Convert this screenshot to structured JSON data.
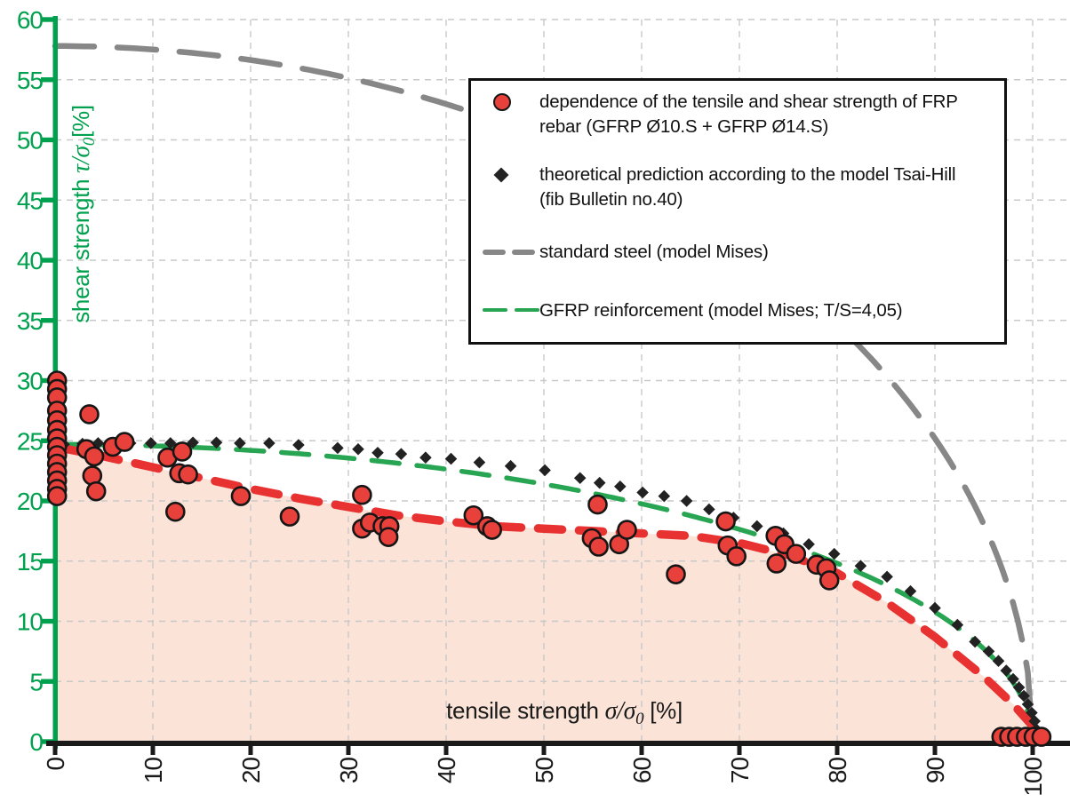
{
  "colors": {
    "axis_green": "#00a14e",
    "curve_green": "#27a552",
    "curve_gray": "#878787",
    "curve_red": "#e73231",
    "fill_pink": "#fbe3d8",
    "point_red_fill": "#e8403a",
    "point_outline": "#161616",
    "diamond_black": "#222222",
    "grid_gray": "#c9c9c9",
    "axis_black": "#1a1a1a"
  },
  "axes": {
    "x": {
      "label": {
        "prefix": "tensile strength ",
        "symbol": "σ/σ",
        "sub": "0",
        "suffix": " [%]"
      },
      "ticks": [
        0,
        10,
        20,
        30,
        40,
        50,
        60,
        70,
        80,
        90,
        100
      ]
    },
    "y": {
      "label": {
        "prefix": "shear strength ",
        "symbol": "τ/σ",
        "sub": "0",
        "suffix": "[%]"
      },
      "ticks": [
        0,
        5,
        10,
        15,
        20,
        25,
        30,
        35,
        40,
        45,
        50,
        55,
        60
      ]
    }
  },
  "legend": {
    "items": [
      {
        "marker": "red-circle",
        "line1": "dependence of the tensile and shear strength of FRP",
        "line2": "rebar (GFRP Ø10.S + GFRP Ø14.S)"
      },
      {
        "marker": "black-diamond",
        "line1": "theoretical prediction according to the model Tsai-Hill",
        "line2": "(fib Bulletin no.40)"
      },
      {
        "marker": "gray-dash",
        "line1": "standard steel (model Mises)",
        "line2": ""
      },
      {
        "marker": "green-dash",
        "line1": "GFRP reinforcement (model Mises; T/S=4,05)",
        "line2": ""
      }
    ]
  },
  "chart_data": {
    "type": "scatter",
    "xlabel": "tensile strength σ/σ0 [%]",
    "ylabel": "shear strength τ/σ0 [%]",
    "xlim": [
      0,
      103.8
    ],
    "ylim": [
      0,
      60
    ],
    "grid": {
      "x_step": 10,
      "y_step": 5,
      "style": "dashed"
    },
    "legend_position": "top-right-box",
    "series": [
      {
        "id": "experimental",
        "name": "dependence of the tensile and shear strength of FRP rebar (GFRP Ø10.S + GFRP Ø14.S)",
        "type": "scatter",
        "marker": "circle",
        "color": "#e8403a",
        "points": [
          [
            0.2,
            30.0
          ],
          [
            0.2,
            29.3
          ],
          [
            0.2,
            28.6
          ],
          [
            0.2,
            27.5
          ],
          [
            0.2,
            26.7
          ],
          [
            0.2,
            25.9
          ],
          [
            0.2,
            25.2
          ],
          [
            0.2,
            24.5
          ],
          [
            0.2,
            23.8
          ],
          [
            0.2,
            23.1
          ],
          [
            0.2,
            22.4
          ],
          [
            0.2,
            21.7
          ],
          [
            0.2,
            21.0
          ],
          [
            0.2,
            20.4
          ],
          [
            3.5,
            27.2
          ],
          [
            3.2,
            24.3
          ],
          [
            4.0,
            23.7
          ],
          [
            3.8,
            22.1
          ],
          [
            4.2,
            20.8
          ],
          [
            5.9,
            24.5
          ],
          [
            7.1,
            24.9
          ],
          [
            11.5,
            23.6
          ],
          [
            13.0,
            24.1
          ],
          [
            12.7,
            22.3
          ],
          [
            13.6,
            22.2
          ],
          [
            12.3,
            19.1
          ],
          [
            19.0,
            20.4
          ],
          [
            24.0,
            18.7
          ],
          [
            31.4,
            20.5
          ],
          [
            31.4,
            17.7
          ],
          [
            32.2,
            18.2
          ],
          [
            33.5,
            17.9
          ],
          [
            34.2,
            17.9
          ],
          [
            34.1,
            17.0
          ],
          [
            42.8,
            18.8
          ],
          [
            44.2,
            17.9
          ],
          [
            44.7,
            17.6
          ],
          [
            55.5,
            19.7
          ],
          [
            54.9,
            16.9
          ],
          [
            55.6,
            16.2
          ],
          [
            57.7,
            16.4
          ],
          [
            58.5,
            17.6
          ],
          [
            63.5,
            13.9
          ],
          [
            68.6,
            18.3
          ],
          [
            68.8,
            16.3
          ],
          [
            69.7,
            15.4
          ],
          [
            73.7,
            17.1
          ],
          [
            74.6,
            16.4
          ],
          [
            75.8,
            15.6
          ],
          [
            73.8,
            14.8
          ],
          [
            77.9,
            14.7
          ],
          [
            78.9,
            14.4
          ],
          [
            79.2,
            13.4
          ],
          [
            96.8,
            0.4
          ],
          [
            97.6,
            0.4
          ],
          [
            98.4,
            0.4
          ],
          [
            99.3,
            0.4
          ],
          [
            100.1,
            0.4
          ],
          [
            100.9,
            0.4
          ]
        ]
      },
      {
        "id": "tsai_hill",
        "name": "theoretical prediction according to the model Tsai-Hill (fib Bulletin no.40)",
        "type": "scatter",
        "marker": "diamond",
        "color": "#222222",
        "points": [
          [
            0.9,
            24.7
          ],
          [
            2.8,
            24.75
          ],
          [
            4.4,
            24.8
          ],
          [
            6.0,
            24.8
          ],
          [
            7.7,
            24.8
          ],
          [
            9.8,
            24.8
          ],
          [
            11.8,
            24.8
          ],
          [
            14.1,
            24.85
          ],
          [
            16.5,
            24.85
          ],
          [
            18.9,
            24.8
          ],
          [
            21.9,
            24.8
          ],
          [
            24.9,
            24.65
          ],
          [
            28.9,
            24.4
          ],
          [
            31.0,
            24.3
          ],
          [
            33.0,
            24.0
          ],
          [
            35.4,
            23.9
          ],
          [
            37.9,
            23.6
          ],
          [
            40.5,
            23.5
          ],
          [
            43.4,
            23.2
          ],
          [
            46.6,
            22.9
          ],
          [
            50.1,
            22.55
          ],
          [
            53.7,
            21.9
          ],
          [
            55.7,
            21.5
          ],
          [
            57.8,
            21.2
          ],
          [
            60.1,
            20.7
          ],
          [
            62.3,
            20.4
          ],
          [
            64.6,
            20.0
          ],
          [
            66.9,
            19.3
          ],
          [
            69.4,
            18.6
          ],
          [
            71.8,
            17.9
          ],
          [
            74.5,
            17.3
          ],
          [
            77.1,
            16.4
          ],
          [
            79.7,
            15.6
          ],
          [
            82.4,
            14.6
          ],
          [
            85.1,
            13.7
          ],
          [
            87.5,
            12.5
          ],
          [
            90.0,
            11.1
          ],
          [
            92.3,
            9.7
          ],
          [
            94.1,
            8.3
          ],
          [
            95.5,
            7.5
          ],
          [
            96.5,
            6.7
          ],
          [
            97.3,
            5.9
          ],
          [
            98.0,
            5.2
          ],
          [
            98.6,
            4.5
          ],
          [
            99.1,
            3.8
          ],
          [
            99.5,
            3.1
          ],
          [
            99.9,
            2.4
          ],
          [
            100.2,
            1.7
          ],
          [
            100.4,
            1.0
          ],
          [
            100.3,
            0.5
          ]
        ]
      },
      {
        "id": "steel_mises",
        "name": "standard steel (model Mises)",
        "type": "line",
        "style": "dashed",
        "color": "#878787",
        "model": "mises-ellipse",
        "tau0": 57.8,
        "sigma_u": 100
      },
      {
        "id": "gfrp_mises",
        "name": "GFRP reinforcement (model Mises; T/S=4,05)",
        "type": "line",
        "style": "dashed",
        "color": "#27a552",
        "model": "mises-ellipse",
        "tau0": 24.7,
        "sigma_u": 100
      },
      {
        "id": "experimental_trend",
        "type": "line",
        "style": "dashed",
        "color": "#e73231",
        "fill_below": "#fbe3d8",
        "points": [
          [
            0,
            24.5
          ],
          [
            5,
            23.7
          ],
          [
            10,
            22.8
          ],
          [
            15,
            21.9
          ],
          [
            20,
            21.0
          ],
          [
            25,
            20.2
          ],
          [
            30,
            19.5
          ],
          [
            35,
            18.8
          ],
          [
            40,
            18.3
          ],
          [
            45,
            17.9
          ],
          [
            50,
            17.7
          ],
          [
            55,
            17.5
          ],
          [
            60,
            17.3
          ],
          [
            65,
            17.1
          ],
          [
            70,
            16.5
          ],
          [
            75,
            15.5
          ],
          [
            80,
            14.0
          ],
          [
            85,
            11.6
          ],
          [
            90,
            8.7
          ],
          [
            95,
            5.4
          ],
          [
            98,
            3.1
          ],
          [
            100,
            1.3
          ],
          [
            101.2,
            0
          ]
        ]
      }
    ]
  }
}
